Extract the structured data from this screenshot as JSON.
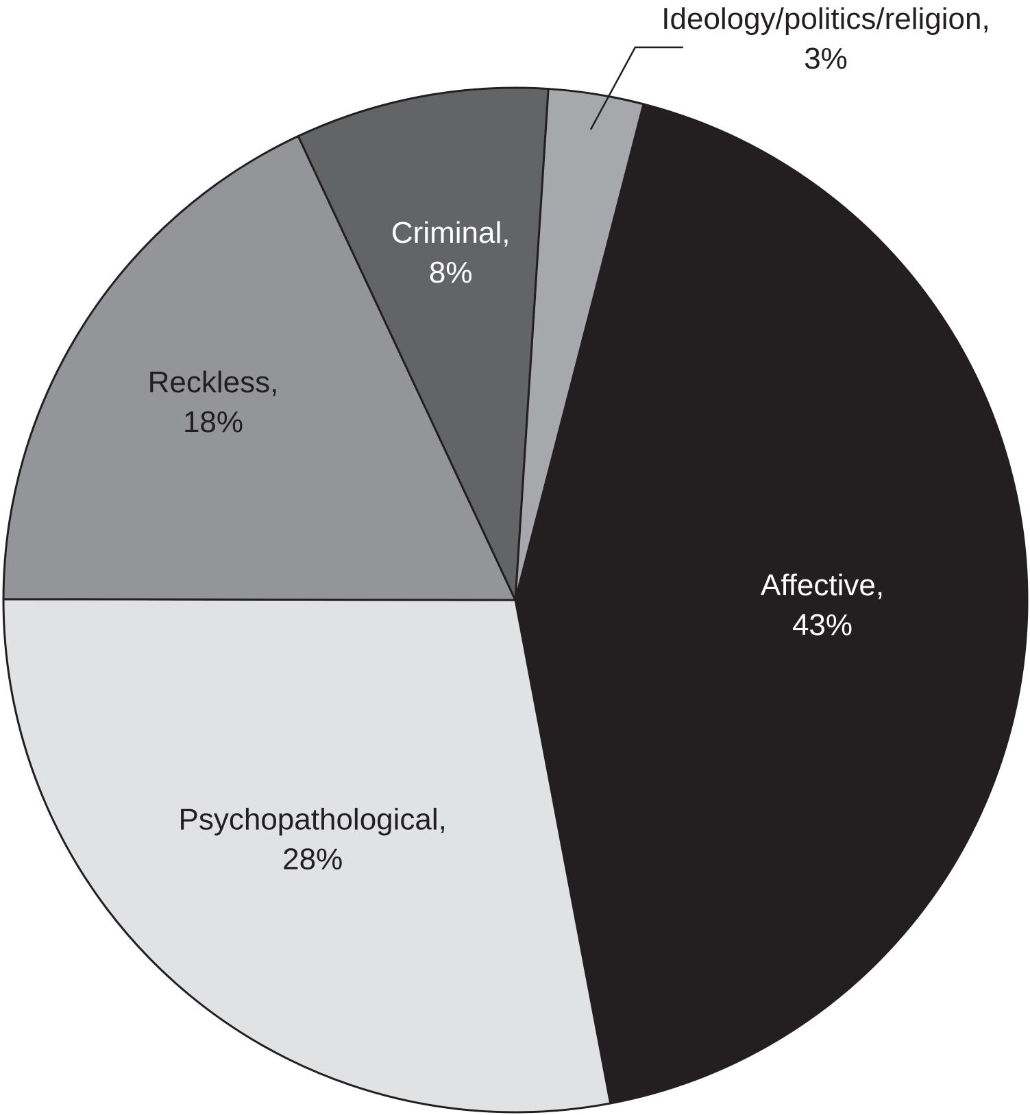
{
  "chart_data": {
    "type": "pie",
    "title": "",
    "slices": [
      {
        "label": "Affective,",
        "value_text": "43%",
        "value": 43,
        "color": "#231f20",
        "text_color": "#ffffff"
      },
      {
        "label": "Psychopathological,",
        "value_text": "28%",
        "value": 28,
        "color": "#e1e2e4",
        "text_color": "#231f20"
      },
      {
        "label": "Reckless,",
        "value_text": "18%",
        "value": 18,
        "color": "#939598",
        "text_color": "#231f20"
      },
      {
        "label": "Criminal,",
        "value_text": "8%",
        "value": 8,
        "color": "#636466",
        "text_color": "#ffffff"
      },
      {
        "label": "Ideology/politics/religion,",
        "value_text": "3%",
        "value": 3,
        "color": "#a6a8ab",
        "text_color": "#231f20"
      }
    ],
    "start_angle_deg": 14.5,
    "direction": "clockwise",
    "slice_border_color": "#231f20",
    "outer_labels": [
      "Ideology/politics/religion,"
    ],
    "legend": "none"
  }
}
